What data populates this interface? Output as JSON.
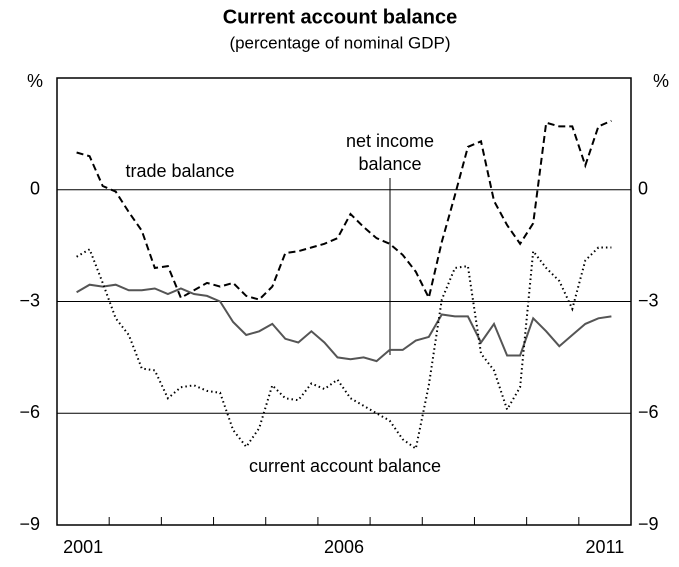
{
  "chart_data": {
    "type": "line",
    "title": "Current account balance",
    "subtitle": "(percentage of nominal GDP)",
    "y_unit": "%",
    "xlim": [
      2001,
      2012
    ],
    "xticks": [
      {
        "value": 2001.5,
        "label": "2001"
      },
      {
        "value": 2006.5,
        "label": "2006"
      },
      {
        "value": 2011.5,
        "label": "2011"
      }
    ],
    "xtick_marks": [
      2002,
      2003,
      2004,
      2005,
      2006,
      2007,
      2008,
      2009,
      2010,
      2011
    ],
    "ylim": [
      -9,
      3
    ],
    "yticks": [
      {
        "value": -9,
        "label": "−9"
      },
      {
        "value": -6,
        "label": "−6"
      },
      {
        "value": -3,
        "label": "−3"
      },
      0
    ],
    "grid": true,
    "x": [
      2001.375,
      2001.625,
      2001.875,
      2002.125,
      2002.375,
      2002.625,
      2002.875,
      2003.125,
      2003.375,
      2003.625,
      2003.875,
      2004.125,
      2004.375,
      2004.625,
      2004.875,
      2005.125,
      2005.375,
      2005.625,
      2005.875,
      2006.125,
      2006.375,
      2006.625,
      2006.875,
      2007.125,
      2007.375,
      2007.625,
      2007.875,
      2008.125,
      2008.375,
      2008.625,
      2008.875,
      2009.125,
      2009.375,
      2009.625,
      2009.875,
      2010.125,
      2010.375,
      2010.625,
      2010.875,
      2011.125,
      2011.375,
      2011.625
    ],
    "series": [
      {
        "name": "trade balance",
        "color": "#000000",
        "dash": "7,4",
        "values": [
          1.0,
          0.9,
          0.1,
          -0.05,
          -0.6,
          -1.1,
          -2.1,
          -2.05,
          -2.9,
          -2.7,
          -2.5,
          -2.6,
          -2.5,
          -2.85,
          -2.95,
          -2.6,
          -1.7,
          -1.65,
          -1.55,
          -1.45,
          -1.3,
          -0.65,
          -1.0,
          -1.3,
          -1.45,
          -1.75,
          -2.2,
          -2.9,
          -1.4,
          -0.15,
          1.15,
          1.3,
          -0.3,
          -0.95,
          -1.45,
          -0.9,
          1.8,
          1.7,
          1.7,
          0.65,
          1.7,
          1.85
        ]
      },
      {
        "name": "net income balance",
        "color": "#555555",
        "dash": "",
        "values": [
          -2.75,
          -2.55,
          -2.6,
          -2.55,
          -2.7,
          -2.7,
          -2.65,
          -2.8,
          -2.65,
          -2.8,
          -2.85,
          -3.0,
          -3.55,
          -3.9,
          -3.8,
          -3.6,
          -4.0,
          -4.1,
          -3.8,
          -4.1,
          -4.5,
          -4.55,
          -4.5,
          -4.6,
          -4.3,
          -4.3,
          -4.05,
          -3.95,
          -3.35,
          -3.4,
          -3.4,
          -4.1,
          -3.6,
          -4.45,
          -4.45,
          -3.45,
          -3.8,
          -4.2,
          -3.9,
          -3.6,
          -3.45,
          -3.4
        ]
      },
      {
        "name": "current account balance",
        "color": "#000000",
        "dash": "1.5,3",
        "values": [
          -1.8,
          -1.6,
          -2.5,
          -3.45,
          -3.9,
          -4.8,
          -4.85,
          -5.6,
          -5.3,
          -5.25,
          -5.4,
          -5.45,
          -6.45,
          -6.9,
          -6.4,
          -5.25,
          -5.6,
          -5.65,
          -5.2,
          -5.35,
          -5.1,
          -5.6,
          -5.8,
          -6.0,
          -6.2,
          -6.7,
          -6.95,
          -5.25,
          -2.95,
          -2.1,
          -2.05,
          -4.4,
          -4.85,
          -5.9,
          -5.3,
          -1.65,
          -2.1,
          -2.45,
          -3.2,
          -1.9,
          -1.55,
          -1.55
        ]
      }
    ],
    "annotations": [
      "trade balance",
      "net income",
      "balance",
      "current account balance"
    ]
  }
}
